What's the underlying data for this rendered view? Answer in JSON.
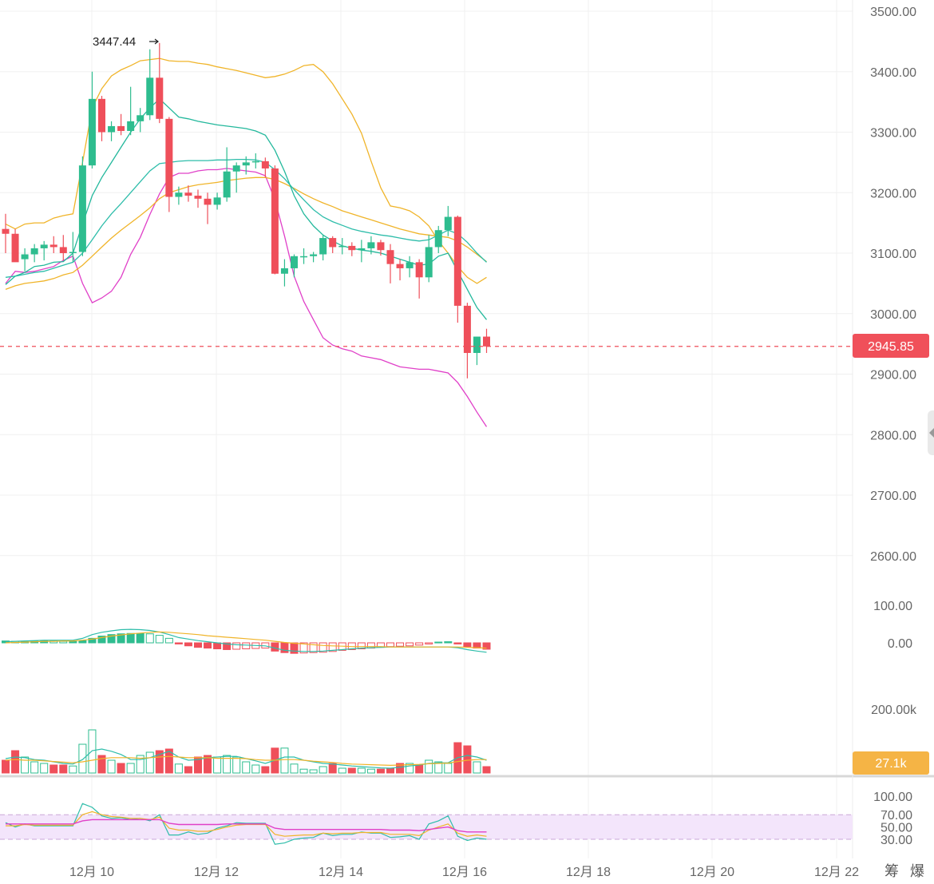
{
  "header": {
    "high_marker": "3447.44"
  },
  "bottom_right": {
    "label1": "筹",
    "label2": "爆"
  },
  "chart_data": {
    "type": "candlestick",
    "x_axis": {
      "labels": [
        "12月 10",
        "12月 12",
        "12月 14",
        "12月 16",
        "12月 18",
        "12月 20",
        "12月 22"
      ]
    },
    "price_panel": {
      "ylim": [
        2520,
        3520
      ],
      "ticks": [
        "3500.00",
        "3400.00",
        "3300.00",
        "3200.00",
        "3100.00",
        "3000.00",
        "2900.00",
        "2800.00",
        "2700.00",
        "2600.00"
      ],
      "last_price": "2945.85",
      "candles": [
        [
          3140,
          3165,
          3100,
          3132
        ],
        [
          3132,
          3140,
          3090,
          3085
        ],
        [
          3090,
          3108,
          3070,
          3098
        ],
        [
          3098,
          3115,
          3085,
          3108
        ],
        [
          3108,
          3120,
          3088,
          3114
        ],
        [
          3114,
          3128,
          3100,
          3110
        ],
        [
          3110,
          3130,
          3088,
          3100
        ],
        [
          3100,
          3135,
          3085,
          3102
        ],
        [
          3102,
          3260,
          3095,
          3245
        ],
        [
          3245,
          3400,
          3240,
          3355
        ],
        [
          3355,
          3360,
          3285,
          3300
        ],
        [
          3300,
          3318,
          3285,
          3310
        ],
        [
          3310,
          3330,
          3295,
          3302
        ],
        [
          3302,
          3375,
          3295,
          3318
        ],
        [
          3318,
          3340,
          3300,
          3328
        ],
        [
          3328,
          3437,
          3320,
          3390
        ],
        [
          3390,
          3447.44,
          3315,
          3322
        ],
        [
          3322,
          3325,
          3168,
          3193
        ],
        [
          3193,
          3210,
          3180,
          3200
        ],
        [
          3200,
          3212,
          3185,
          3195
        ],
        [
          3195,
          3205,
          3175,
          3190
        ],
        [
          3190,
          3200,
          3148,
          3180
        ],
        [
          3180,
          3200,
          3172,
          3192
        ],
        [
          3192,
          3275,
          3185,
          3235
        ],
        [
          3235,
          3250,
          3200,
          3245
        ],
        [
          3245,
          3260,
          3230,
          3250
        ],
        [
          3250,
          3265,
          3240,
          3252
        ],
        [
          3252,
          3258,
          3225,
          3240
        ],
        [
          3240,
          3245,
          3065,
          3066
        ],
        [
          3066,
          3090,
          3045,
          3075
        ],
        [
          3075,
          3098,
          3060,
          3095
        ],
        [
          3095,
          3108,
          3082,
          3095
        ],
        [
          3095,
          3102,
          3085,
          3098
        ],
        [
          3098,
          3130,
          3088,
          3125
        ],
        [
          3125,
          3128,
          3100,
          3110
        ],
        [
          3110,
          3125,
          3098,
          3112
        ],
        [
          3112,
          3118,
          3095,
          3105
        ],
        [
          3105,
          3122,
          3085,
          3108
        ],
        [
          3108,
          3128,
          3098,
          3118
        ],
        [
          3118,
          3122,
          3096,
          3105
        ],
        [
          3105,
          3115,
          3050,
          3082
        ],
        [
          3082,
          3090,
          3055,
          3075
        ],
        [
          3075,
          3095,
          3060,
          3085
        ],
        [
          3085,
          3090,
          3025,
          3060
        ],
        [
          3060,
          3130,
          3052,
          3110
        ],
        [
          3110,
          3145,
          3100,
          3138
        ],
        [
          3138,
          3178,
          3128,
          3160
        ],
        [
          3160,
          3162,
          2985,
          3013
        ],
        [
          3013,
          3018,
          2893,
          2935
        ],
        [
          2935,
          2962,
          2915,
          2962
        ],
        [
          2962,
          2975,
          2935,
          2945.85
        ]
      ],
      "bb_upper": [
        3148,
        3140,
        3148,
        3150,
        3150,
        3158,
        3162,
        3165,
        3250,
        3340,
        3372,
        3393,
        3403,
        3410,
        3418,
        3420,
        3422,
        3418,
        3417,
        3417,
        3414,
        3412,
        3408,
        3405,
        3402,
        3398,
        3394,
        3390,
        3392,
        3396,
        3402,
        3410,
        3412,
        3400,
        3380,
        3355,
        3330,
        3298,
        3252,
        3208,
        3178,
        3175,
        3170,
        3160,
        3145,
        3120,
        3100,
        3078,
        3060,
        3050,
        3060
      ],
      "bb_mid": [
        3100,
        3105,
        3108,
        3110,
        3112,
        3118,
        3125,
        3130,
        3150,
        3180,
        3200,
        3215,
        3232,
        3255,
        3272,
        3292,
        3310,
        3320,
        3323,
        3325,
        3326,
        3325,
        3324,
        3322,
        3320,
        3318,
        3315,
        3310,
        3290,
        3262,
        3232,
        3205,
        3188,
        3168,
        3155,
        3150,
        3145,
        3143,
        3140,
        3138,
        3132,
        3120,
        3112,
        3108,
        3106,
        3105,
        3102,
        3088,
        3065,
        3040,
        3018
      ],
      "bb_lower": [
        3050,
        3070,
        3068,
        3070,
        3074,
        3078,
        3088,
        3095,
        3050,
        3018,
        3026,
        3037,
        3060,
        3098,
        3126,
        3164,
        3198,
        3225,
        3232,
        3232,
        3236,
        3238,
        3238,
        3240,
        3238,
        3236,
        3234,
        3228,
        3188,
        3128,
        3062,
        3020,
        2990,
        2960,
        2948,
        2942,
        2938,
        2930,
        2927,
        2924,
        2918,
        2912,
        2910,
        2908,
        2908,
        2905,
        2902,
        2886,
        2863,
        2837,
        2813
      ],
      "ma1": [
        3048,
        3062,
        3068,
        3078,
        3080,
        3085,
        3086,
        3100,
        3148,
        3195,
        3225,
        3250,
        3275,
        3300,
        3322,
        3340,
        3355,
        3340,
        3325,
        3322,
        3318,
        3315,
        3312,
        3310,
        3308,
        3306,
        3302,
        3295,
        3270,
        3235,
        3195,
        3165,
        3145,
        3130,
        3120,
        3112,
        3108,
        3105,
        3103,
        3100,
        3095,
        3090,
        3085,
        3080,
        3082,
        3095,
        3100,
        3070,
        3040,
        3010,
        2990
      ],
      "ma2": [
        3060,
        3062,
        3065,
        3068,
        3070,
        3075,
        3080,
        3085,
        3100,
        3122,
        3145,
        3165,
        3182,
        3200,
        3218,
        3236,
        3248,
        3250,
        3252,
        3253,
        3253,
        3253,
        3254,
        3254,
        3255,
        3255,
        3254,
        3250,
        3238,
        3223,
        3205,
        3188,
        3172,
        3160,
        3152,
        3146,
        3140,
        3136,
        3133,
        3130,
        3128,
        3125,
        3122,
        3120,
        3122,
        3130,
        3138,
        3132,
        3118,
        3100,
        3085
      ],
      "ma3": [
        3040,
        3046,
        3050,
        3052,
        3054,
        3058,
        3064,
        3068,
        3080,
        3095,
        3110,
        3125,
        3138,
        3150,
        3162,
        3175,
        3190,
        3200,
        3205,
        3210,
        3213,
        3215,
        3217,
        3220,
        3222,
        3224,
        3225,
        3225,
        3222,
        3215,
        3207,
        3198,
        3190,
        3183,
        3177,
        3170,
        3165,
        3160,
        3155,
        3150,
        3145,
        3140,
        3136,
        3132,
        3130,
        3128,
        3126,
        3120,
        3110,
        3098,
        3086
      ]
    },
    "macd_panel": {
      "ticks": [
        "100.00",
        "0.00"
      ],
      "histogram": [
        5,
        4,
        3,
        5,
        6,
        5,
        4,
        4,
        6,
        12,
        18,
        22,
        24,
        25,
        25,
        24,
        20,
        12,
        -3,
        -8,
        -12,
        -14,
        -16,
        -18,
        -17,
        -16,
        -15,
        -14,
        -22,
        -26,
        -28,
        -27,
        -26,
        -25,
        -23,
        -20,
        -18,
        -16,
        -14,
        -12,
        -10,
        -9,
        -8,
        -6,
        -3,
        2,
        3,
        -3,
        -10,
        -14,
        -17
      ],
      "line1": [
        3,
        4,
        5,
        6,
        7,
        7,
        7,
        7,
        12,
        22,
        28,
        32,
        35,
        36,
        35,
        33,
        29,
        22,
        14,
        10,
        6,
        3,
        0,
        -3,
        -5,
        -6,
        -7,
        -8,
        -14,
        -20,
        -22,
        -23,
        -23,
        -22,
        -20,
        -18,
        -16,
        -14,
        -13,
        -12,
        -11,
        -11,
        -11,
        -11,
        -11,
        -11,
        -11,
        -13,
        -18,
        -22,
        -25
      ],
      "line2": [
        0,
        1,
        2,
        3,
        4,
        4,
        5,
        5,
        7,
        10,
        14,
        18,
        21,
        24,
        26,
        28,
        29,
        28,
        26,
        24,
        22,
        19,
        17,
        15,
        13,
        11,
        9,
        7,
        4,
        1,
        -1,
        -3,
        -5,
        -7,
        -8,
        -9,
        -10,
        -10,
        -10,
        -10,
        -11,
        -11,
        -11,
        -11,
        -11,
        -11,
        -11,
        -11,
        -12,
        -13,
        -14
      ]
    },
    "volume_panel": {
      "ticks": [
        "200.00k"
      ],
      "last_volume": "27.1k",
      "volumes": [
        40,
        70,
        50,
        35,
        30,
        25,
        25,
        22,
        90,
        135,
        55,
        40,
        30,
        30,
        55,
        65,
        70,
        75,
        28,
        20,
        50,
        55,
        50,
        55,
        50,
        35,
        25,
        20,
        78,
        78,
        28,
        12,
        10,
        20,
        30,
        15,
        15,
        15,
        12,
        12,
        15,
        30,
        30,
        25,
        40,
        35,
        30,
        95,
        85,
        35,
        20
      ],
      "vol_ma1": [
        45,
        50,
        48,
        42,
        40,
        35,
        30,
        28,
        42,
        70,
        75,
        68,
        58,
        42,
        42,
        48,
        58,
        68,
        50,
        40,
        42,
        48,
        50,
        52,
        52,
        45,
        38,
        30,
        40,
        50,
        50,
        40,
        35,
        30,
        28,
        25,
        22,
        20,
        18,
        16,
        15,
        18,
        22,
        25,
        30,
        32,
        32,
        48,
        55,
        50,
        40
      ],
      "vol_ma2": [
        40,
        42,
        40,
        40,
        38,
        36,
        34,
        32,
        35,
        40,
        45,
        48,
        48,
        48,
        46,
        48,
        50,
        52,
        50,
        48,
        48,
        48,
        46,
        46,
        46,
        45,
        42,
        40,
        40,
        42,
        42,
        40,
        37,
        35,
        33,
        30,
        28,
        27,
        26,
        25,
        24,
        25,
        26,
        27,
        29,
        30,
        31,
        36,
        40,
        42,
        42
      ]
    },
    "rsi_panel": {
      "ticks": [
        "100.00",
        "70.00",
        "50.00",
        "30.00"
      ],
      "rsi1": [
        57,
        50,
        55,
        52,
        52,
        52,
        52,
        52,
        88,
        82,
        68,
        64,
        65,
        62,
        64,
        60,
        70,
        37,
        37,
        42,
        38,
        40,
        48,
        52,
        57,
        56,
        56,
        56,
        22,
        24,
        30,
        32,
        33,
        40,
        36,
        38,
        38,
        42,
        40,
        40,
        33,
        34,
        36,
        30,
        55,
        60,
        68,
        35,
        28,
        32,
        30
      ],
      "rsi2": [
        52,
        52,
        54,
        53,
        53,
        53,
        53,
        53,
        70,
        75,
        70,
        67,
        66,
        64,
        64,
        62,
        66,
        48,
        45,
        45,
        43,
        43,
        46,
        50,
        53,
        54,
        54,
        54,
        38,
        35,
        36,
        37,
        37,
        40,
        39,
        40,
        40,
        41,
        41,
        41,
        38,
        38,
        38,
        36,
        45,
        50,
        55,
        40,
        35,
        37,
        35
      ],
      "rsi3": [
        55,
        55,
        55,
        55,
        55,
        55,
        55,
        55,
        60,
        62,
        62,
        62,
        62,
        62,
        62,
        62,
        62,
        56,
        54,
        54,
        54,
        54,
        54,
        55,
        55,
        55,
        55,
        55,
        48,
        46,
        46,
        46,
        46,
        46,
        46,
        46,
        46,
        46,
        46,
        46,
        45,
        45,
        45,
        44,
        46,
        48,
        50,
        44,
        42,
        42,
        42
      ]
    }
  }
}
